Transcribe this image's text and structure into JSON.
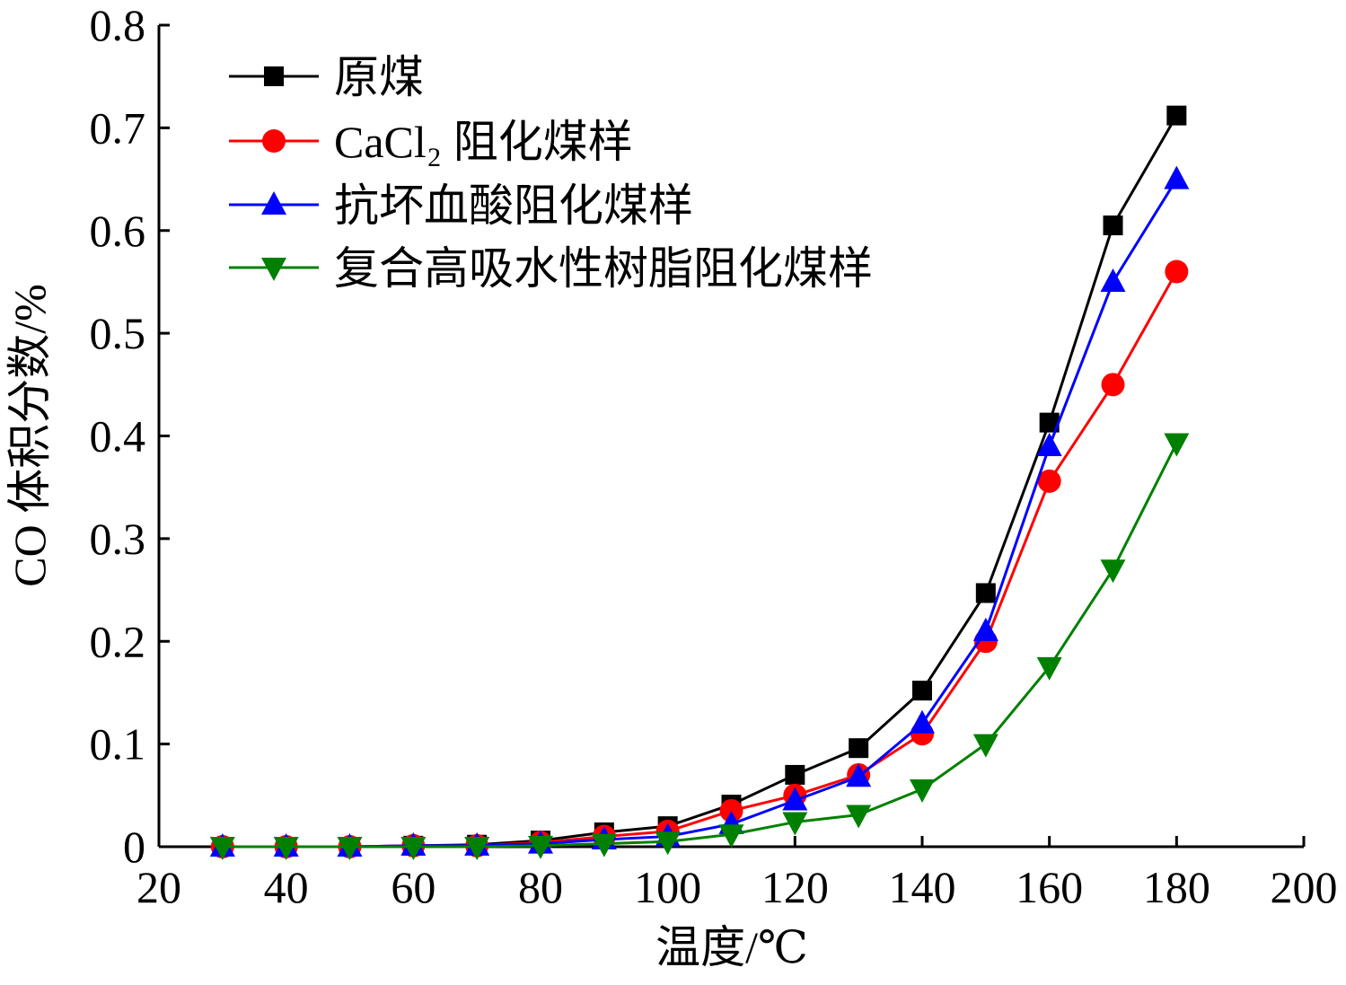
{
  "chart_data": {
    "type": "line",
    "xlabel": "温度/℃",
    "ylabel": "CO 体积分数/%",
    "xlim": [
      20,
      200
    ],
    "ylim": [
      0,
      0.8
    ],
    "xticks": [
      "20",
      "40",
      "60",
      "80",
      "100",
      "120",
      "140",
      "160",
      "180",
      "200"
    ],
    "yticks": [
      "0",
      "0.1",
      "0.2",
      "0.3",
      "0.4",
      "0.5",
      "0.6",
      "0.7",
      "0.8"
    ],
    "grid": false,
    "legend_position": "top-left",
    "x": [
      30,
      40,
      50,
      60,
      70,
      80,
      90,
      100,
      110,
      120,
      130,
      140,
      150,
      160,
      170,
      180
    ],
    "series": [
      {
        "name": "原煤",
        "color": "#000000",
        "marker": "square",
        "values": [
          0,
          0,
          0,
          0.001,
          0.002,
          0.006,
          0.014,
          0.02,
          0.041,
          0.07,
          0.096,
          0.152,
          0.247,
          0.413,
          0.605,
          0.712
        ]
      },
      {
        "name": "CaCl₂ 阻化煤样",
        "color": "#ff0000",
        "marker": "circle",
        "values": [
          0,
          0,
          0,
          0.001,
          0.001,
          0.004,
          0.01,
          0.015,
          0.035,
          0.05,
          0.07,
          0.11,
          0.2,
          0.356,
          0.45,
          0.56
        ]
      },
      {
        "name": "抗坏血酸阻化煤样",
        "color": "#0000ff",
        "marker": "triangle-up",
        "values": [
          0,
          0,
          0,
          0.001,
          0.001,
          0.003,
          0.007,
          0.01,
          0.022,
          0.045,
          0.068,
          0.12,
          0.21,
          0.39,
          0.55,
          0.65
        ]
      },
      {
        "name": "复合高吸水性树脂阻化煤样",
        "color": "#008000",
        "marker": "triangle-down",
        "values": [
          0,
          0,
          0,
          0,
          0,
          0.001,
          0.003,
          0.005,
          0.012,
          0.024,
          0.031,
          0.056,
          0.1,
          0.175,
          0.27,
          0.393
        ]
      }
    ]
  }
}
